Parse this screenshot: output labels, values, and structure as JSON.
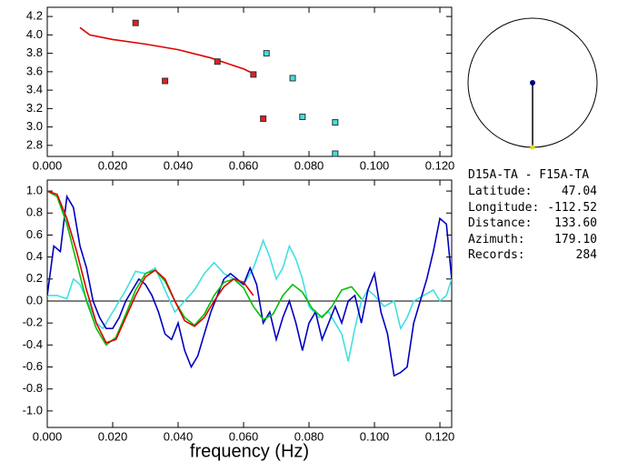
{
  "chart_data": [
    {
      "type": "scatter",
      "xlim": [
        0,
        0.1236
      ],
      "ylim": [
        2.68,
        4.3
      ],
      "xticks": [
        {
          "value": 0,
          "label": "0.000"
        },
        {
          "value": 0.02,
          "label": "0.020"
        },
        {
          "value": 0.04,
          "label": "0.040"
        },
        {
          "value": 0.06,
          "label": "0.060"
        },
        {
          "value": 0.08,
          "label": "0.080"
        },
        {
          "value": 0.1,
          "label": "0.100"
        },
        {
          "value": 0.12,
          "label": "0.120"
        }
      ],
      "yticks": [
        2.8,
        {
          "value": 3.0,
          "label": "3.0"
        },
        3.2,
        3.4,
        3.6,
        3.8,
        {
          "value": 4.0,
          "label": "4.0"
        },
        4.2
      ],
      "series": [
        {
          "type": "line",
          "color": "#e00000",
          "x": [
            0.01,
            0.013,
            0.02,
            0.03,
            0.04,
            0.05,
            0.06,
            0.063
          ],
          "values": [
            4.08,
            4.0,
            3.95,
            3.9,
            3.84,
            3.75,
            3.63,
            3.58
          ]
        },
        {
          "type": "scatter",
          "color": "#e02020",
          "x": [
            0.027,
            0.036,
            0.052,
            0.063,
            0.066
          ],
          "values": [
            4.13,
            3.5,
            3.71,
            3.57,
            3.09
          ]
        },
        {
          "type": "scatter",
          "color": "#40e0e0",
          "x": [
            0.067,
            0.075,
            0.078,
            0.088,
            0.088
          ],
          "values": [
            3.8,
            3.53,
            3.11,
            3.05,
            2.71
          ]
        }
      ]
    },
    {
      "type": "line",
      "x_label": "frequency (Hz)",
      "xlim": [
        0,
        0.1236
      ],
      "ylim": [
        -1.15,
        1.1
      ],
      "hline": 0,
      "xticks": [
        {
          "value": 0,
          "label": "0.000"
        },
        {
          "value": 0.02,
          "label": "0.020"
        },
        {
          "value": 0.04,
          "label": "0.040"
        },
        {
          "value": 0.06,
          "label": "0.060"
        },
        {
          "value": 0.08,
          "label": "0.080"
        },
        {
          "value": 0.1,
          "label": "0.100"
        },
        {
          "value": 0.12,
          "label": "0.120"
        }
      ],
      "yticks": [
        {
          "value": -1.0,
          "label": "-1.0"
        },
        -0.8,
        -0.6,
        -0.4,
        -0.2,
        {
          "value": 0,
          "label": "0.0"
        },
        0.2,
        0.4,
        0.6,
        0.8,
        {
          "value": 1.0,
          "label": "1.0"
        }
      ],
      "series": [
        {
          "color": "#40e0e0",
          "x": [
            0,
            0.003,
            0.006,
            0.008,
            0.01,
            0.013,
            0.015,
            0.017,
            0.02,
            0.024,
            0.027,
            0.03,
            0.033,
            0.036,
            0.039,
            0.042,
            0.045,
            0.048,
            0.051,
            0.054,
            0.057,
            0.06,
            0.063,
            0.066,
            0.068,
            0.07,
            0.072,
            0.074,
            0.076,
            0.078,
            0.08,
            0.083,
            0.086,
            0.088,
            0.09,
            0.092,
            0.094,
            0.096,
            0.098,
            0.1,
            0.103,
            0.106,
            0.108,
            0.11,
            0.112,
            0.115,
            0.118,
            0.12,
            0.122,
            0.1236
          ],
          "values": [
            0.05,
            0.05,
            0.02,
            0.2,
            0.15,
            -0.05,
            -0.2,
            -0.25,
            -0.1,
            0.1,
            0.27,
            0.25,
            0.3,
            0.1,
            -0.1,
            0.0,
            0.1,
            0.25,
            0.35,
            0.25,
            0.2,
            0.15,
            0.3,
            0.55,
            0.4,
            0.2,
            0.3,
            0.5,
            0.38,
            0.2,
            -0.05,
            -0.15,
            -0.1,
            -0.2,
            -0.3,
            -0.55,
            -0.25,
            0.0,
            0.1,
            0.05,
            -0.05,
            0.0,
            -0.25,
            -0.15,
            0.0,
            0.05,
            0.1,
            0.0,
            0.05,
            0.2
          ]
        },
        {
          "color": "#0000c0",
          "x": [
            0,
            0.002,
            0.004,
            0.006,
            0.008,
            0.01,
            0.012,
            0.014,
            0.016,
            0.018,
            0.02,
            0.022,
            0.024,
            0.026,
            0.028,
            0.03,
            0.032,
            0.034,
            0.036,
            0.038,
            0.04,
            0.042,
            0.044,
            0.046,
            0.048,
            0.05,
            0.052,
            0.054,
            0.056,
            0.058,
            0.06,
            0.062,
            0.064,
            0.066,
            0.068,
            0.07,
            0.072,
            0.074,
            0.076,
            0.078,
            0.08,
            0.082,
            0.084,
            0.086,
            0.088,
            0.09,
            0.092,
            0.094,
            0.096,
            0.098,
            0.1,
            0.102,
            0.104,
            0.106,
            0.108,
            0.11,
            0.112,
            0.114,
            0.116,
            0.118,
            0.12,
            0.122,
            0.1236
          ],
          "values": [
            0.05,
            0.5,
            0.45,
            0.95,
            0.85,
            0.5,
            0.3,
            0.0,
            -0.15,
            -0.25,
            -0.25,
            -0.15,
            0.0,
            0.1,
            0.2,
            0.15,
            0.05,
            -0.1,
            -0.3,
            -0.35,
            -0.2,
            -0.45,
            -0.6,
            -0.5,
            -0.3,
            -0.1,
            0.05,
            0.2,
            0.25,
            0.2,
            0.15,
            0.3,
            0.15,
            -0.2,
            -0.1,
            -0.35,
            -0.15,
            0.0,
            -0.2,
            -0.45,
            -0.2,
            -0.1,
            -0.35,
            -0.2,
            -0.05,
            -0.2,
            0.0,
            0.05,
            -0.2,
            0.1,
            0.25,
            -0.1,
            -0.3,
            -0.68,
            -0.65,
            -0.6,
            -0.2,
            0.0,
            0.2,
            0.45,
            0.75,
            0.7,
            0.2
          ]
        },
        {
          "color": "#00c000",
          "x": [
            0,
            0.003,
            0.006,
            0.009,
            0.012,
            0.015,
            0.018,
            0.021,
            0.024,
            0.027,
            0.03,
            0.033,
            0.036,
            0.039,
            0.042,
            0.045,
            0.048,
            0.051,
            0.054,
            0.057,
            0.06,
            0.063,
            0.066,
            0.069,
            0.072,
            0.075,
            0.078,
            0.081,
            0.084,
            0.087,
            0.09,
            0.093,
            0.096
          ],
          "values": [
            1.0,
            0.95,
            0.7,
            0.35,
            0.0,
            -0.25,
            -0.4,
            -0.33,
            -0.12,
            0.1,
            0.25,
            0.28,
            0.18,
            0.0,
            -0.15,
            -0.22,
            -0.12,
            0.05,
            0.17,
            0.2,
            0.12,
            -0.05,
            -0.17,
            -0.12,
            0.05,
            0.15,
            0.08,
            -0.07,
            -0.15,
            -0.05,
            0.1,
            0.13,
            0.02
          ]
        },
        {
          "color": "#e00000",
          "x": [
            0,
            0.003,
            0.006,
            0.009,
            0.012,
            0.015,
            0.018,
            0.021,
            0.024,
            0.027,
            0.03,
            0.033,
            0.036,
            0.039,
            0.042,
            0.045,
            0.048,
            0.051,
            0.054,
            0.057,
            0.06,
            0.063
          ],
          "values": [
            1.0,
            0.97,
            0.75,
            0.45,
            0.1,
            -0.2,
            -0.38,
            -0.35,
            -0.15,
            0.05,
            0.22,
            0.28,
            0.2,
            0.0,
            -0.18,
            -0.23,
            -0.15,
            0.0,
            0.13,
            0.2,
            0.17,
            0.05
          ]
        }
      ]
    }
  ],
  "info": {
    "title": "D15A-TA - F15A-TA",
    "rows": [
      [
        "Latitude:",
        "47.04"
      ],
      [
        "Longitude:",
        "-112.52"
      ],
      [
        "Distance:",
        "133.60"
      ],
      [
        "Azimuth:",
        "179.10"
      ],
      [
        "Records:",
        "284"
      ]
    ]
  }
}
